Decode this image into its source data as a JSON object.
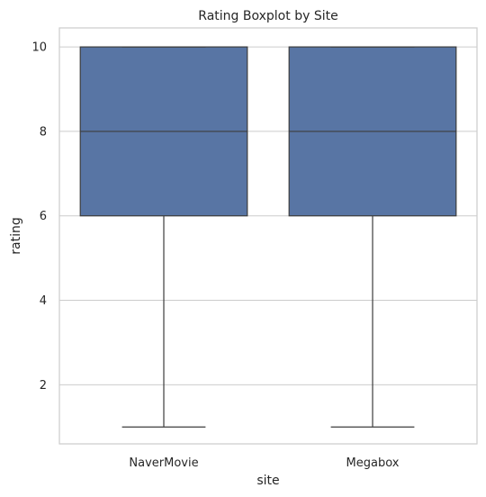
{
  "chart_data": {
    "type": "boxplot",
    "title": "Rating Boxplot by Site",
    "xlabel": "site",
    "ylabel": "rating",
    "categories": [
      "NaverMovie",
      "Megabox"
    ],
    "boxes": [
      {
        "category": "NaverMovie",
        "whisker_low": 1,
        "q1": 6,
        "median": 8,
        "q3": 10,
        "whisker_high": 10
      },
      {
        "category": "Megabox",
        "whisker_low": 1,
        "q1": 6,
        "median": 8,
        "q3": 10,
        "whisker_high": 10
      }
    ],
    "ylim": [
      0.6,
      10.45
    ],
    "yticks": [
      2,
      4,
      6,
      8,
      10
    ],
    "grid": "horizontal",
    "colors": {
      "box_fill": "#5875a4",
      "line": "#3d3d3d",
      "grid": "#cccccc",
      "frame": "#cccccc"
    }
  }
}
